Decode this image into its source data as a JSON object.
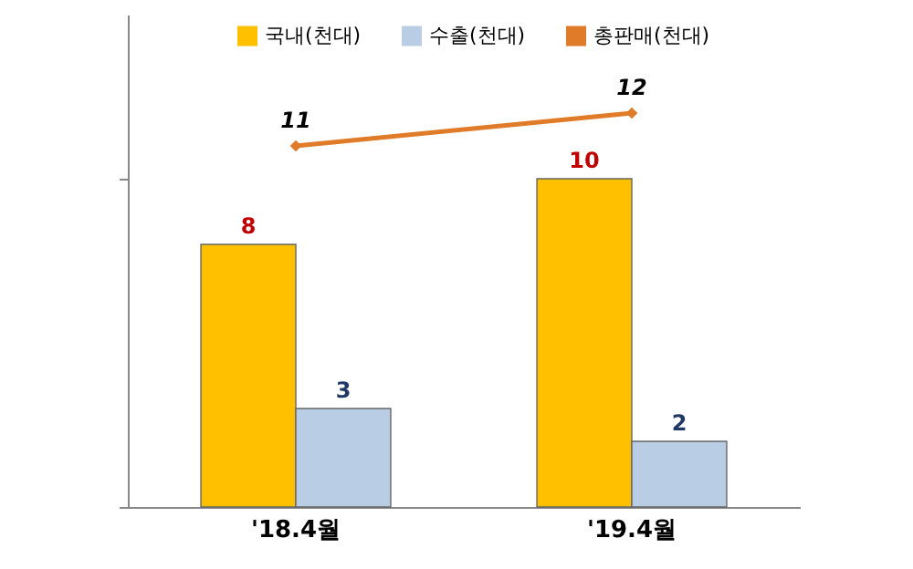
{
  "chart_data": {
    "type": "bar",
    "categories": [
      "'18.4월",
      "'19.4월"
    ],
    "series": [
      {
        "name": "국내(천대)",
        "color": "#ffc000",
        "values": [
          8,
          10
        ]
      },
      {
        "name": "수출(천대)",
        "color": "#b9cde5",
        "values": [
          3,
          2
        ]
      },
      {
        "name": "총판매(천대)",
        "type": "line",
        "color": "#e07b29",
        "values": [
          11,
          12
        ]
      }
    ],
    "ylim": [
      0,
      15
    ],
    "yticks": [
      {
        "value": 0,
        "label": null
      },
      {
        "value": 10,
        "label": null
      }
    ],
    "tick_labels": "x",
    "grid": false,
    "legend": "top",
    "marker": "diamond",
    "data_labels": true
  }
}
